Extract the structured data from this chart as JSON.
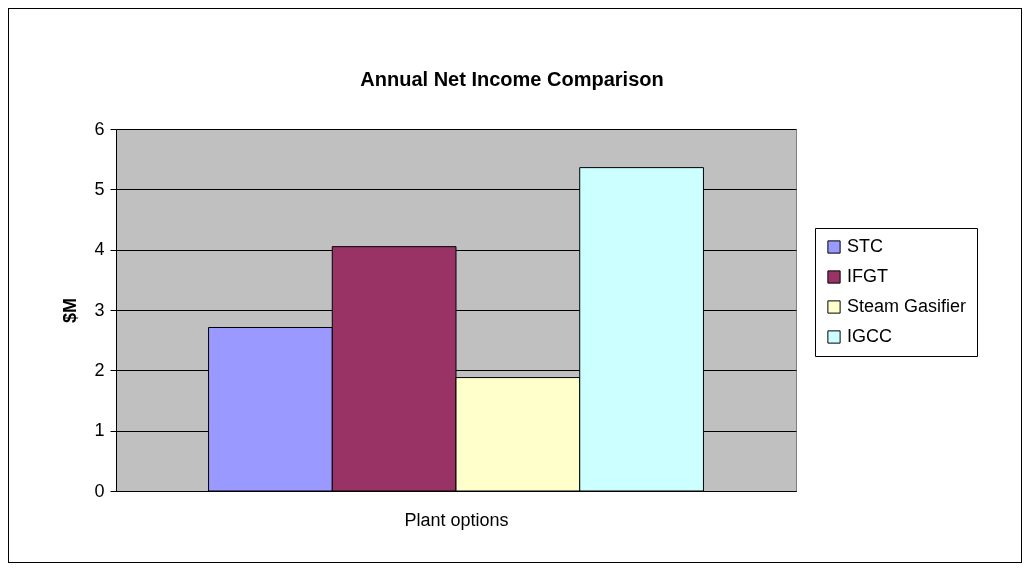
{
  "chart_data": {
    "type": "bar",
    "title": "Annual Net Income Comparison",
    "xlabel": "Plant options",
    "ylabel": "$M",
    "categories": [
      null
    ],
    "series": [
      {
        "name": "STC",
        "color": "#9999ff",
        "values": [
          2.71
        ]
      },
      {
        "name": "IFGT",
        "color": "#993366",
        "values": [
          4.05
        ]
      },
      {
        "name": "Steam Gasifier",
        "color": "#ffffcc",
        "values": [
          1.88
        ]
      },
      {
        "name": "IGCC",
        "color": "#ccffff",
        "values": [
          5.36
        ]
      }
    ],
    "ylim": [
      0,
      6
    ],
    "yticks": [
      0,
      1,
      2,
      3,
      4,
      5,
      6
    ],
    "grid": "y",
    "legend": "right"
  }
}
